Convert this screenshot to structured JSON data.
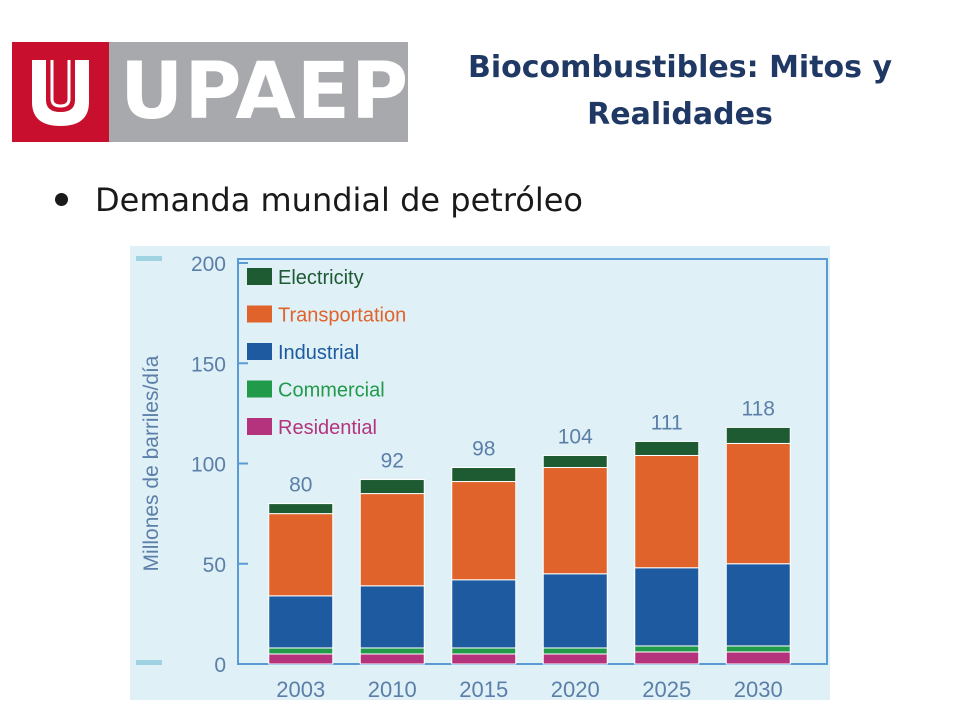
{
  "logo": {
    "text": "UPAEP"
  },
  "slide": {
    "title_line1": "Biocombustibles: Mitos y",
    "title_line2": "Realidades",
    "bullet": "Demanda mundial de petróleo"
  },
  "colors": {
    "electricity": "#1e5a32",
    "transportation": "#e0632b",
    "industrial": "#1e5aa0",
    "commercial": "#219a4a",
    "residential": "#b5337d",
    "title": "#1f3864",
    "logo_red": "#c8102e",
    "logo_gray": "#a7a9ac"
  },
  "chart_data": {
    "type": "bar",
    "stacked": true,
    "ylabel": "Millones de barriles/día",
    "xlabel": "",
    "ylim": [
      0,
      200
    ],
    "yticks": [
      0,
      50,
      100,
      150,
      200
    ],
    "categories": [
      "2003",
      "2010",
      "2015",
      "2020",
      "2025",
      "2030"
    ],
    "totals": [
      "80",
      "92",
      "98",
      "104",
      "111",
      "118"
    ],
    "legend_position": "top-left",
    "series": [
      {
        "name": "Residential",
        "color": "#b5337d",
        "values": [
          5,
          5,
          5,
          5,
          6,
          6
        ]
      },
      {
        "name": "Commercial",
        "color": "#219a4a",
        "values": [
          3,
          3,
          3,
          3,
          3,
          3
        ]
      },
      {
        "name": "Industrial",
        "color": "#1e5aa0",
        "values": [
          26,
          31,
          34,
          37,
          39,
          41
        ]
      },
      {
        "name": "Transportation",
        "color": "#e0632b",
        "values": [
          41,
          46,
          49,
          53,
          56,
          60
        ]
      },
      {
        "name": "Electricity",
        "color": "#1e5a32",
        "values": [
          5,
          7,
          7,
          6,
          7,
          8
        ]
      }
    ],
    "legend_order": [
      "Electricity",
      "Transportation",
      "Industrial",
      "Commercial",
      "Residential"
    ]
  }
}
